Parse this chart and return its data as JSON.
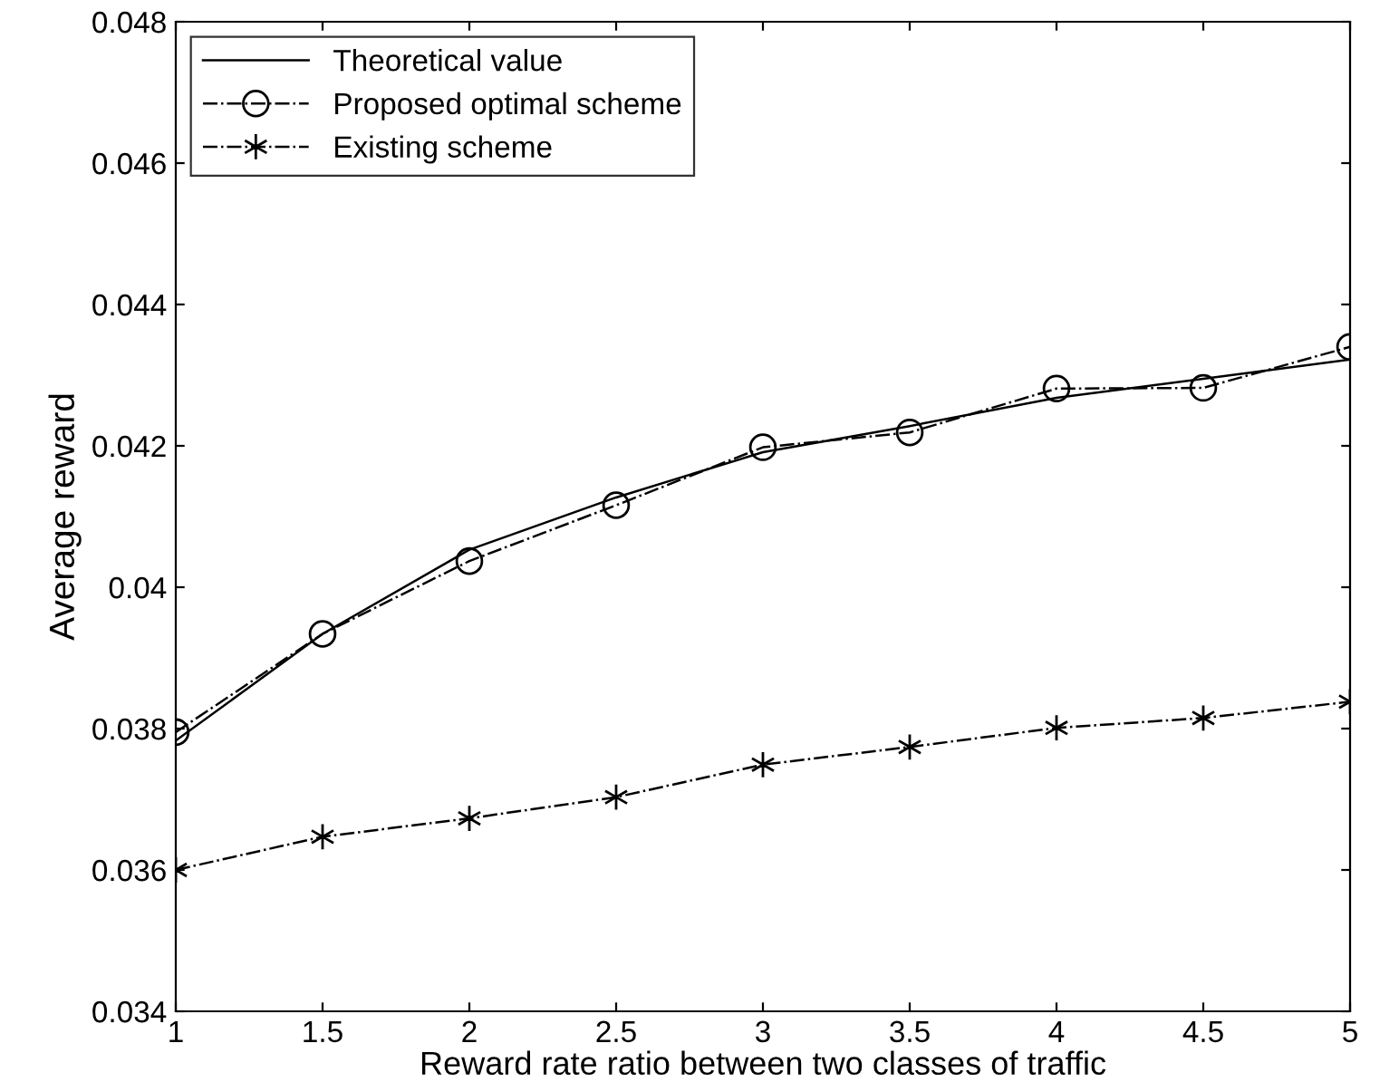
{
  "chart_data": {
    "type": "line",
    "xlabel": "Reward rate ratio between two classes of traffic",
    "ylabel": "Average reward",
    "x": [
      1,
      1.5,
      2,
      2.5,
      3,
      3.5,
      4,
      4.5,
      5
    ],
    "series": [
      {
        "name": "Theoretical value",
        "color": "#000000",
        "marker": "none",
        "line_style": "solid",
        "values": [
          0.03783,
          0.03934,
          0.04053,
          0.04127,
          0.04191,
          0.04228,
          0.04268,
          0.04295,
          0.04322
        ]
      },
      {
        "name": "Proposed optimal scheme",
        "color": "#000000",
        "marker": "circle",
        "line_style": "dashdot",
        "values": [
          0.03795,
          0.03934,
          0.04037,
          0.04116,
          0.04198,
          0.04219,
          0.04281,
          0.04282,
          0.0434
        ]
      },
      {
        "name": "Existing scheme",
        "color": "#000000",
        "marker": "cross",
        "line_style": "dashdot",
        "values": [
          0.036,
          0.03647,
          0.03673,
          0.03703,
          0.03749,
          0.03774,
          0.03801,
          0.03815,
          0.03838
        ]
      }
    ],
    "xlim": [
      1,
      5
    ],
    "xticks": [
      1,
      1.5,
      2,
      2.5,
      3,
      3.5,
      4,
      4.5,
      5
    ],
    "ylim": [
      0.034,
      0.048
    ],
    "yticks": [
      0.034,
      0.036,
      0.038,
      0.04,
      0.042,
      0.044,
      0.046,
      0.048
    ],
    "grid": false,
    "legend": "top left"
  }
}
